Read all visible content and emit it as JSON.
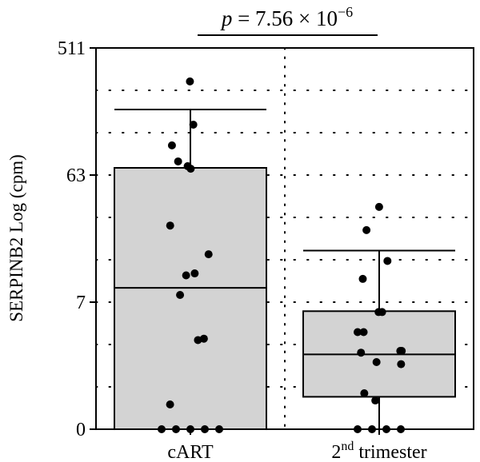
{
  "chart_data": {
    "type": "box",
    "title": "",
    "ylabel": "SERPINB2 Log (cpm)",
    "xlabel": "",
    "yscale": "log2(1+x)",
    "ylim": [
      0,
      511
    ],
    "yticks": [
      {
        "value": 0,
        "label": "0"
      },
      {
        "value": 7,
        "label": "7"
      },
      {
        "value": 63,
        "label": "63"
      },
      {
        "value": 511,
        "label": "511"
      }
    ],
    "grid": "dotted",
    "significance": {
      "p_prefix": "p",
      "p_text": " = 7.56 × 10",
      "p_exp": "−6"
    },
    "categories": [
      {
        "label": "cART",
        "sup": "",
        "suffix": ""
      },
      {
        "label": "2",
        "sup": "nd",
        "suffix": " trimester"
      }
    ],
    "boxes": [
      {
        "category": "cART",
        "whisker_low": 0,
        "q1": 0,
        "median": 9.1,
        "q3": 71,
        "whisker_high": 186,
        "points": [
          295,
          145,
          103,
          79,
          73,
          70,
          27,
          16.5,
          11.8,
          11.4,
          8.0,
          3.4,
          3.3,
          0.5,
          0,
          0,
          0,
          0,
          0
        ]
      },
      {
        "category": "2nd trimester",
        "whisker_low": 0,
        "q1": 0.7,
        "median": 2.4,
        "q3": 5.9,
        "whisker_high": 17.6,
        "points": [
          37,
          25,
          14.7,
          10.7,
          5.8,
          5.8,
          3.9,
          3.9,
          2.6,
          2.6,
          2.5,
          2.0,
          1.9,
          0.8,
          0.6,
          0,
          0,
          0,
          0
        ]
      }
    ]
  }
}
